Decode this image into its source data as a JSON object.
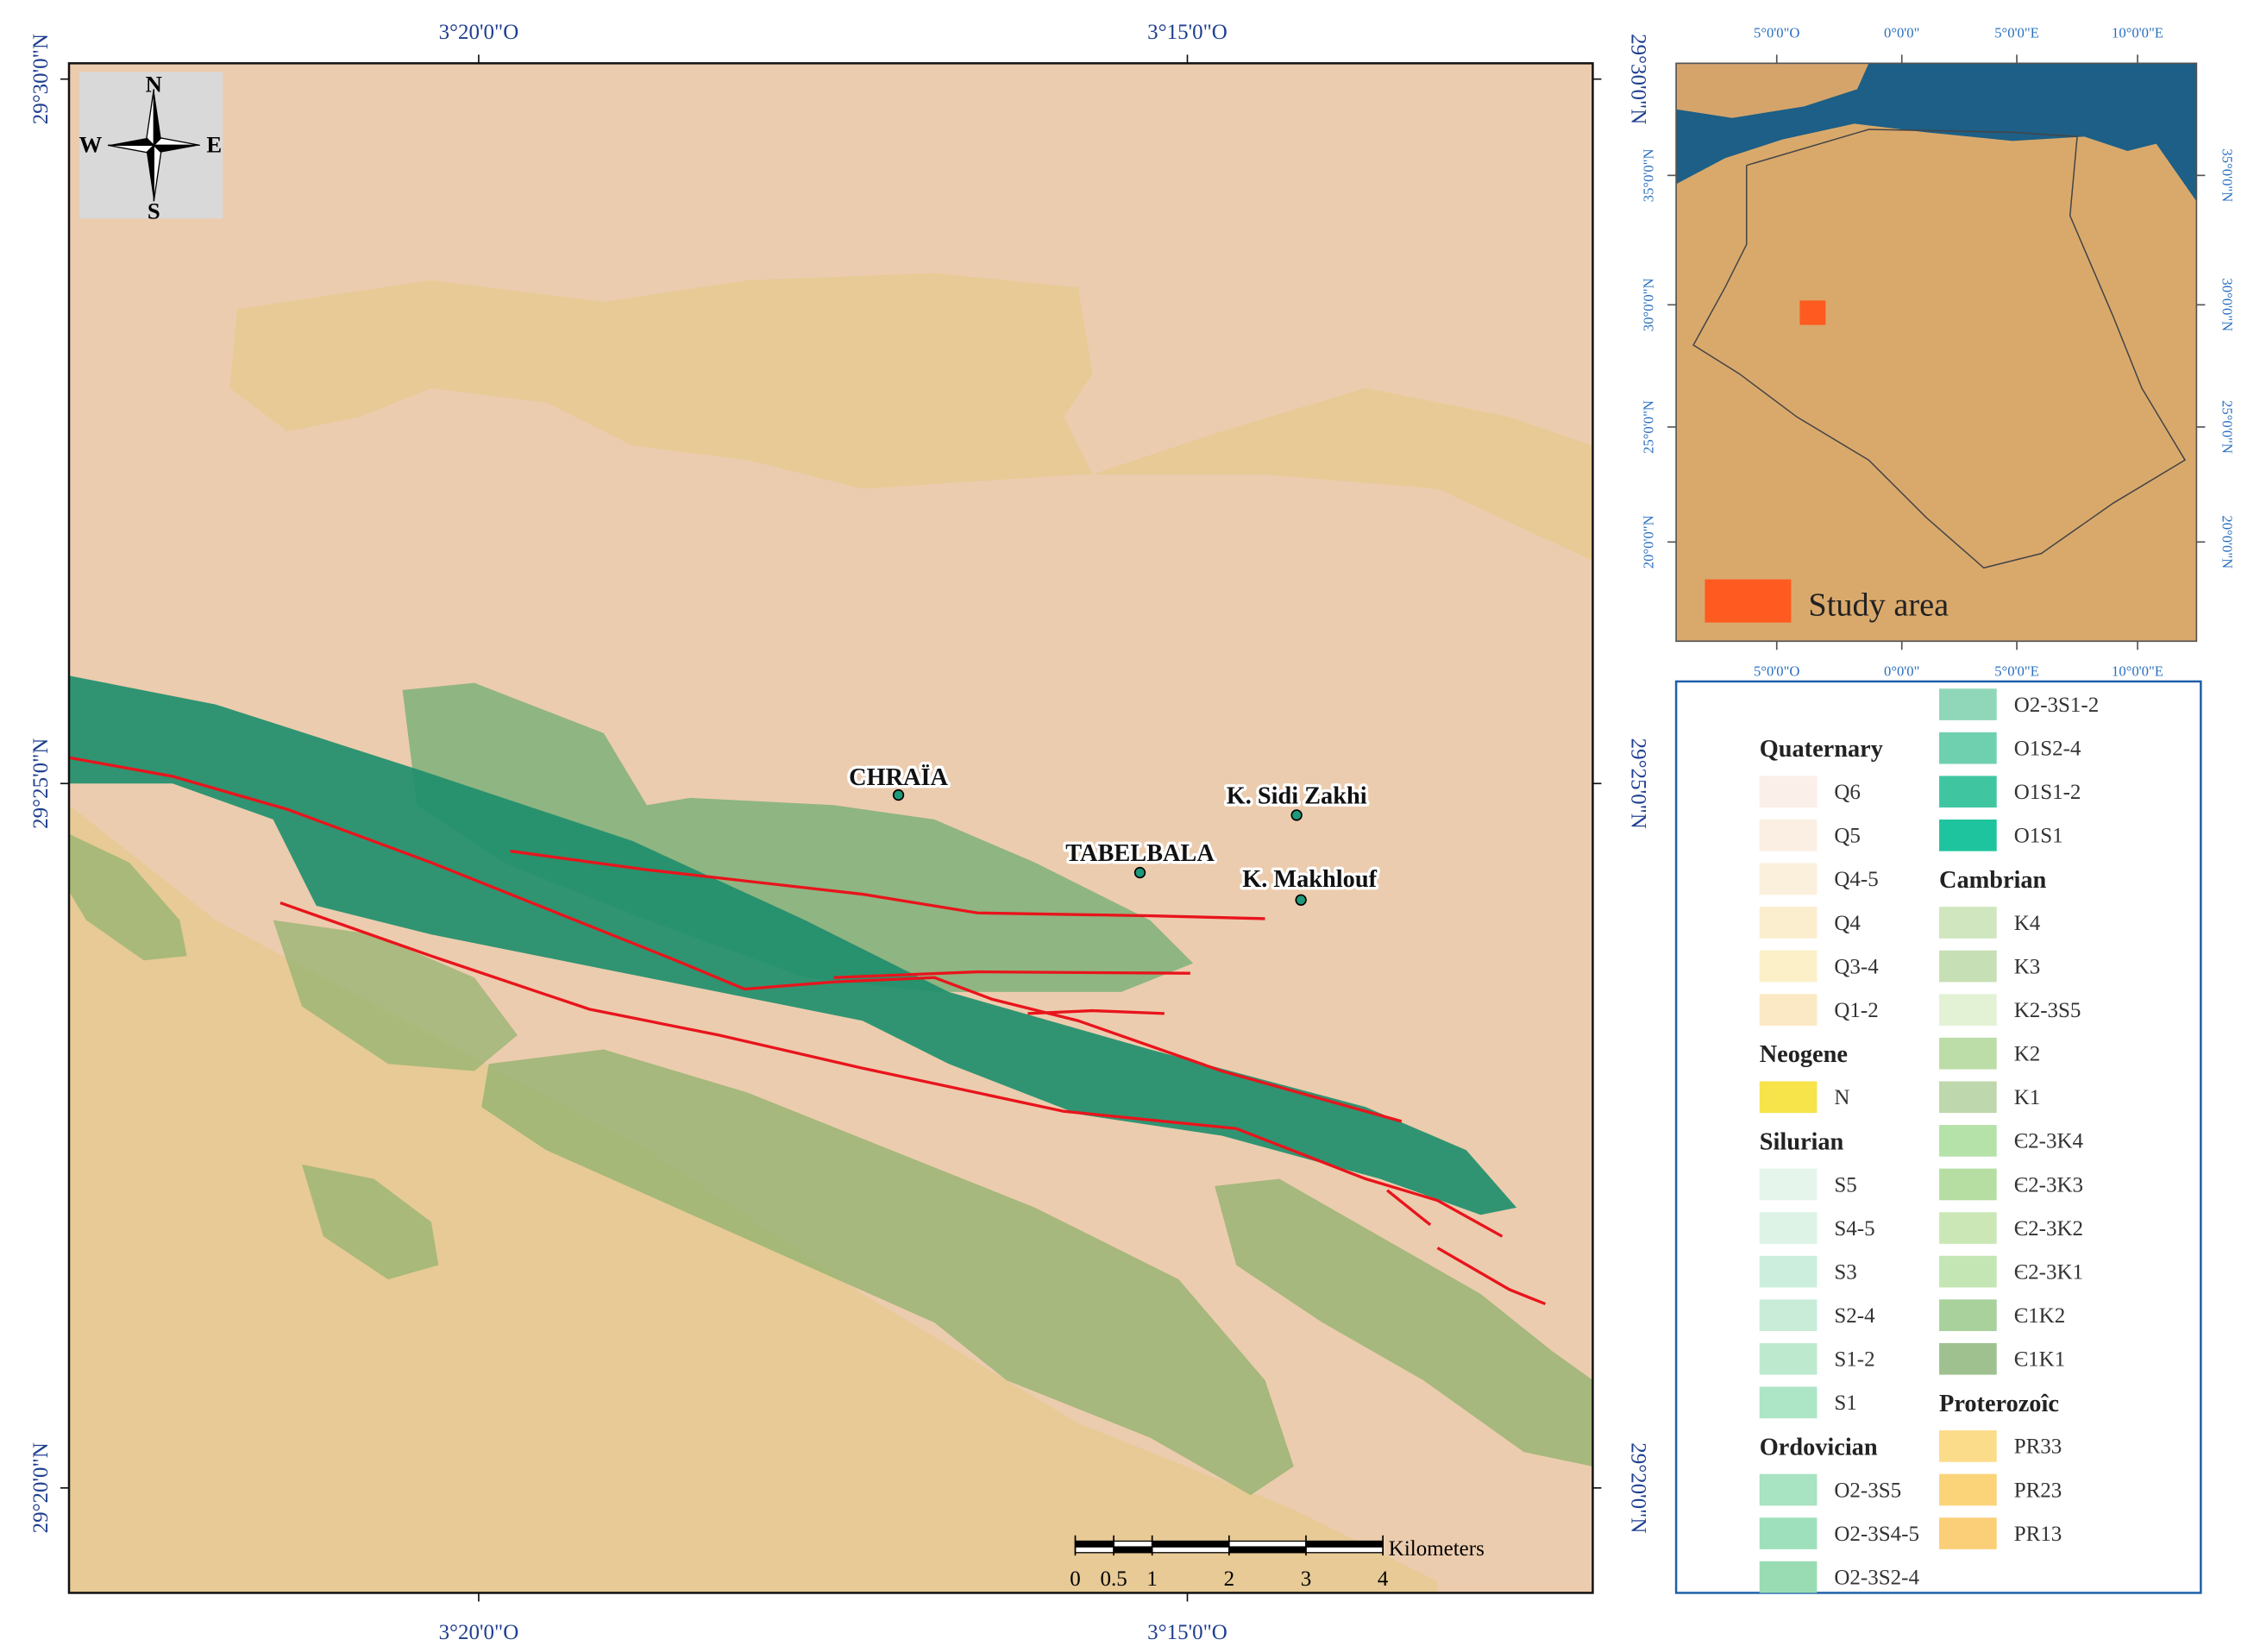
{
  "main_map": {
    "longitude_labels": [
      "3°20'0\"O",
      "3°15'0\"O"
    ],
    "latitude_labels": [
      "29°30'0\"N",
      "29°25'0\"N",
      "29°20'0\"N"
    ],
    "compass": {
      "n": "N",
      "s": "S",
      "e": "E",
      "w": "W"
    },
    "places": [
      "CHRAÏA",
      "K. Sidi Zakhi",
      "TABELBALA",
      "K. Makhlouf"
    ],
    "scale_bar": {
      "unit": "Kilometers",
      "ticks": [
        0,
        0.5,
        1,
        2,
        3,
        4
      ]
    }
  },
  "inset_map": {
    "longitude_labels": [
      "5°0'0\"O",
      "0°0'0\"",
      "5°0'0\"E",
      "10°0'0\"E"
    ],
    "latitude_labels": [
      "35°0'0\"N",
      "30°0'0\"N",
      "25°0'0\"N",
      "20°0'0\"N"
    ],
    "legend": "Study area"
  },
  "legend": {
    "groups": [
      {
        "title": "Quaternary",
        "items": [
          {
            "label": "Q6",
            "color": "#fbefe9"
          },
          {
            "label": "Q5",
            "color": "#fbeee2"
          },
          {
            "label": "Q4-5",
            "color": "#fbf0dc"
          },
          {
            "label": "Q4",
            "color": "#fbeecf"
          },
          {
            "label": "Q3-4",
            "color": "#fbf0c8"
          },
          {
            "label": "Q1-2",
            "color": "#fbe8c4"
          }
        ]
      },
      {
        "title": "Neogene",
        "items": [
          {
            "label": "N",
            "color": "#f7e34a"
          }
        ]
      },
      {
        "title": "Silurian",
        "items": [
          {
            "label": "S5",
            "color": "#e6f5eb"
          },
          {
            "label": "S4-5",
            "color": "#dcf3e5"
          },
          {
            "label": "S3",
            "color": "#ccefdd"
          },
          {
            "label": "S2-4",
            "color": "#c8ecd8"
          },
          {
            "label": "S1-2",
            "color": "#bdeacf"
          },
          {
            "label": "S1",
            "color": "#ade5c7"
          }
        ]
      },
      {
        "title": "Ordovician",
        "items": [
          {
            "label": "O2-3S5",
            "color": "#a8e3c2"
          },
          {
            "label": "O2-3S4-5",
            "color": "#9fe0bc"
          },
          {
            "label": "O2-3S2-4",
            "color": "#99dcb3"
          },
          {
            "label": "O2-3S1-2",
            "color": "#8fd7b8"
          },
          {
            "label": "O1S2-4",
            "color": "#6fd0b0"
          },
          {
            "label": "O1S1-2",
            "color": "#3fc6a0"
          },
          {
            "label": "O1S1",
            "color": "#1ec49d"
          }
        ]
      },
      {
        "title": "Cambrian",
        "items": [
          {
            "label": "K4",
            "color": "#cfe6be"
          },
          {
            "label": "K3",
            "color": "#c7dfb5"
          },
          {
            "label": "K2-3S5",
            "color": "#e3f2d5"
          },
          {
            "label": "K2",
            "color": "#bcdca8"
          },
          {
            "label": "K1",
            "color": "#bfd7ad"
          },
          {
            "label": "Є2-3K4",
            "color": "#b5e2a8"
          },
          {
            "label": "Є2-3K3",
            "color": "#b6dea3"
          },
          {
            "label": "Є2-3K2",
            "color": "#cbe7b6"
          },
          {
            "label": "Є2-3K1",
            "color": "#c4e6b4"
          },
          {
            "label": "Є1K2",
            "color": "#a9d19c"
          },
          {
            "label": "Є1K1",
            "color": "#9fc190"
          }
        ]
      },
      {
        "title": "Proterozoîc",
        "items": [
          {
            "label": "PR33",
            "color": "#fbdc8a"
          },
          {
            "label": "PR23",
            "color": "#fbd47a"
          },
          {
            "label": "PR13",
            "color": "#fbcf78"
          }
        ]
      }
    ]
  }
}
